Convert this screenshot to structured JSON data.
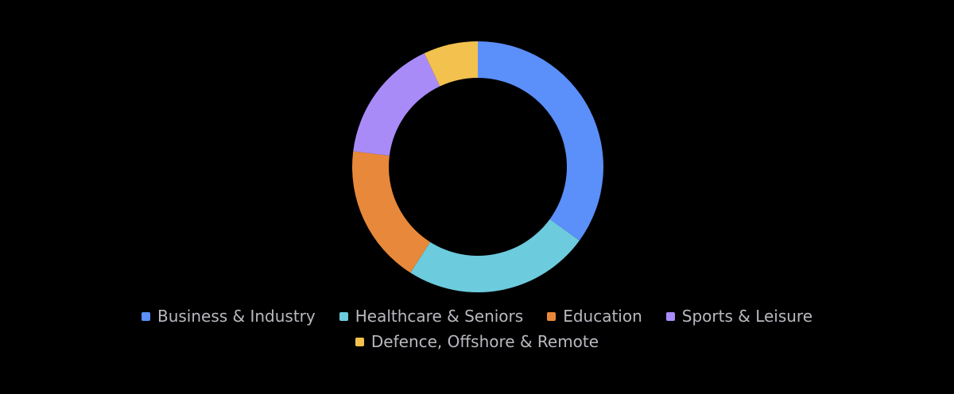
{
  "chart_data": {
    "type": "donut",
    "categories": [
      "Business & Industry",
      "Healthcare & Seniors",
      "Education",
      "Sports & Leisure",
      "Defence, Offshore & Remote"
    ],
    "values": [
      35,
      24,
      18,
      16,
      7
    ],
    "colors": [
      "#5b8ff9",
      "#6ccbdd",
      "#e8883a",
      "#a98bf8",
      "#f2c14e"
    ]
  }
}
